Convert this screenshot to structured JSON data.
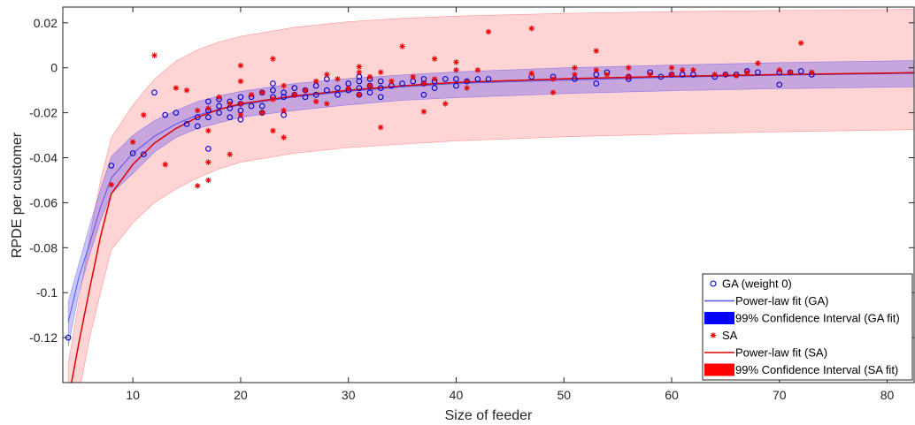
{
  "chart_data": {
    "type": "scatter",
    "title": "",
    "xlabel": "Size of feeder",
    "ylabel": "RPDE per customer",
    "xlim": [
      3.5,
      82.5
    ],
    "ylim": [
      -0.14,
      0.027
    ],
    "xticks": [
      10,
      20,
      30,
      40,
      50,
      60,
      70,
      80
    ],
    "xtick_labels": [
      "10",
      "20",
      "30",
      "40",
      "50",
      "60",
      "70",
      "80"
    ],
    "yticks": [
      0.02,
      0,
      -0.02,
      -0.04,
      -0.06,
      -0.08,
      -0.1,
      -0.12
    ],
    "ytick_labels": [
      "0.02",
      "0",
      "-0.02",
      "-0.04",
      "-0.06",
      "-0.08",
      "-0.1",
      "-0.12"
    ],
    "grid": false,
    "legend_position": "bottom-right",
    "legend": [
      {
        "label": "GA (weight 0)",
        "kind": "marker-circle",
        "color": "#0000cc"
      },
      {
        "label": "Power-law fit (GA)",
        "kind": "line",
        "color": "#5555ee"
      },
      {
        "label": "99% Confidence Interval (GA fit)",
        "kind": "patch",
        "color": "#0000ff"
      },
      {
        "label": "SA",
        "kind": "marker-star",
        "color": "#ee0000"
      },
      {
        "label": "Power-law fit (SA)",
        "kind": "line",
        "color": "#dd0000"
      },
      {
        "label": "99% Confidence Interval (SA fit)",
        "kind": "patch",
        "color": "#ff0000"
      }
    ],
    "series": [
      {
        "name": "GA (weight 0)",
        "kind": "scatter",
        "marker": "circle",
        "color": "#0000cc",
        "points": [
          [
            4,
            -0.12
          ],
          [
            8,
            -0.0435
          ],
          [
            10,
            -0.038
          ],
          [
            11,
            -0.0385
          ],
          [
            12,
            -0.011
          ],
          [
            13,
            -0.021
          ],
          [
            14,
            -0.02
          ],
          [
            15,
            -0.025
          ],
          [
            16,
            -0.026
          ],
          [
            16,
            -0.022
          ],
          [
            17,
            -0.036
          ],
          [
            17,
            -0.022
          ],
          [
            17,
            -0.019
          ],
          [
            17,
            -0.015
          ],
          [
            18,
            -0.02
          ],
          [
            18,
            -0.017
          ],
          [
            18,
            -0.014
          ],
          [
            19,
            -0.022
          ],
          [
            19,
            -0.018
          ],
          [
            19,
            -0.015
          ],
          [
            20,
            -0.023
          ],
          [
            20,
            -0.019
          ],
          [
            20,
            -0.016
          ],
          [
            20,
            -0.013
          ],
          [
            21,
            -0.017
          ],
          [
            21,
            -0.013
          ],
          [
            22,
            -0.02
          ],
          [
            22,
            -0.017
          ],
          [
            22,
            -0.011
          ],
          [
            23,
            -0.013
          ],
          [
            23,
            -0.01
          ],
          [
            23,
            -0.007
          ],
          [
            24,
            -0.021
          ],
          [
            24,
            -0.013
          ],
          [
            24,
            -0.011
          ],
          [
            25,
            -0.012
          ],
          [
            25,
            -0.009
          ],
          [
            26,
            -0.013
          ],
          [
            26,
            -0.01
          ],
          [
            27,
            -0.012
          ],
          [
            27,
            -0.008
          ],
          [
            28,
            -0.01
          ],
          [
            28,
            -0.005
          ],
          [
            29,
            -0.012
          ],
          [
            29,
            -0.009
          ],
          [
            30,
            -0.01
          ],
          [
            30,
            -0.007
          ],
          [
            31,
            -0.012
          ],
          [
            31,
            -0.009
          ],
          [
            31,
            -0.006
          ],
          [
            31,
            -0.004
          ],
          [
            32,
            -0.011
          ],
          [
            32,
            -0.008
          ],
          [
            32,
            -0.005
          ],
          [
            33,
            -0.013
          ],
          [
            33,
            -0.009
          ],
          [
            33,
            -0.006
          ],
          [
            34,
            -0.008
          ],
          [
            35,
            -0.007
          ],
          [
            36,
            -0.006
          ],
          [
            37,
            -0.012
          ],
          [
            37,
            -0.007
          ],
          [
            37,
            -0.005
          ],
          [
            38,
            -0.009
          ],
          [
            38,
            -0.006
          ],
          [
            39,
            -0.005
          ],
          [
            40,
            -0.008
          ],
          [
            40,
            -0.005
          ],
          [
            41,
            -0.006
          ],
          [
            42,
            -0.005
          ],
          [
            43,
            -0.005
          ],
          [
            47,
            -0.004
          ],
          [
            49,
            -0.004
          ],
          [
            51,
            -0.005
          ],
          [
            53,
            -0.007
          ],
          [
            53,
            -0.003
          ],
          [
            54,
            -0.002
          ],
          [
            56,
            -0.005
          ],
          [
            56,
            -0.004
          ],
          [
            58,
            -0.002
          ],
          [
            59,
            -0.004
          ],
          [
            60,
            -0.003
          ],
          [
            61,
            -0.003
          ],
          [
            62,
            -0.003
          ],
          [
            64,
            -0.004
          ],
          [
            65,
            -0.003
          ],
          [
            66,
            -0.003
          ],
          [
            67,
            -0.0015
          ],
          [
            68,
            -0.002
          ],
          [
            70,
            -0.0075
          ],
          [
            70,
            -0.002
          ],
          [
            71,
            -0.002
          ],
          [
            72,
            -0.0015
          ],
          [
            73,
            -0.003
          ]
        ]
      },
      {
        "name": "SA",
        "kind": "scatter",
        "marker": "star",
        "color": "#ee0000",
        "points": [
          [
            8,
            -0.052
          ],
          [
            10,
            -0.033
          ],
          [
            11,
            -0.021
          ],
          [
            12,
            0.0055
          ],
          [
            13,
            -0.043
          ],
          [
            14,
            -0.009
          ],
          [
            15,
            -0.01
          ],
          [
            16,
            -0.0525
          ],
          [
            16,
            -0.019
          ],
          [
            17,
            -0.05
          ],
          [
            17,
            -0.042
          ],
          [
            17,
            -0.028
          ],
          [
            17,
            -0.018
          ],
          [
            18,
            -0.013
          ],
          [
            19,
            -0.0385
          ],
          [
            19,
            -0.016
          ],
          [
            20,
            0.001
          ],
          [
            20,
            -0.006
          ],
          [
            20,
            -0.016
          ],
          [
            20,
            -0.021
          ],
          [
            21,
            -0.012
          ],
          [
            22,
            -0.02
          ],
          [
            22,
            -0.011
          ],
          [
            23,
            0.004
          ],
          [
            23,
            -0.028
          ],
          [
            23,
            -0.014
          ],
          [
            24,
            -0.031
          ],
          [
            24,
            -0.019
          ],
          [
            24,
            -0.008
          ],
          [
            25,
            -0.012
          ],
          [
            26,
            -0.01
          ],
          [
            27,
            -0.015
          ],
          [
            27,
            -0.006
          ],
          [
            28,
            -0.016
          ],
          [
            28,
            -0.003
          ],
          [
            29,
            -0.005
          ],
          [
            30,
            -0.009
          ],
          [
            31,
            0.0005
          ],
          [
            31,
            -0.002
          ],
          [
            31,
            -0.012
          ],
          [
            32,
            -0.008
          ],
          [
            32,
            -0.004
          ],
          [
            33,
            -0.0265
          ],
          [
            33,
            -0.002
          ],
          [
            34,
            -0.006
          ],
          [
            35,
            0.0095
          ],
          [
            36,
            -0.004
          ],
          [
            37,
            -0.0195
          ],
          [
            37,
            -0.007
          ],
          [
            38,
            0.004
          ],
          [
            38,
            -0.005
          ],
          [
            39,
            -0.016
          ],
          [
            40,
            0.0025
          ],
          [
            40,
            -0.001
          ],
          [
            41,
            -0.009
          ],
          [
            41,
            -0.006
          ],
          [
            42,
            -0.001
          ],
          [
            43,
            0.016
          ],
          [
            47,
            0.0175
          ],
          [
            47,
            -0.0025
          ],
          [
            49,
            -0.011
          ],
          [
            49,
            -0.005
          ],
          [
            51,
            0.0
          ],
          [
            51,
            -0.003
          ],
          [
            53,
            0.0075
          ],
          [
            53,
            -0.001
          ],
          [
            54,
            -0.003
          ],
          [
            56,
            0.0
          ],
          [
            56,
            -0.004
          ],
          [
            58,
            -0.003
          ],
          [
            60,
            0.0
          ],
          [
            60,
            -0.003
          ],
          [
            61,
            -0.001
          ],
          [
            62,
            -0.001
          ],
          [
            64,
            -0.003
          ],
          [
            65,
            -0.003
          ],
          [
            66,
            -0.0035
          ],
          [
            67,
            -0.002
          ],
          [
            68,
            0.002
          ],
          [
            70,
            -0.001
          ],
          [
            71,
            -0.002
          ],
          [
            72,
            0.011
          ],
          [
            73,
            -0.002
          ]
        ]
      },
      {
        "name": "Power-law fit (GA)",
        "kind": "line",
        "color": "#5555ee",
        "points": [
          [
            4,
            -0.113
          ],
          [
            5,
            -0.093
          ],
          [
            6,
            -0.078
          ],
          [
            7,
            -0.062
          ],
          [
            8,
            -0.049
          ],
          [
            10,
            -0.038
          ],
          [
            12,
            -0.0305
          ],
          [
            14,
            -0.025
          ],
          [
            16,
            -0.021
          ],
          [
            18,
            -0.0185
          ],
          [
            20,
            -0.0165
          ],
          [
            25,
            -0.013
          ],
          [
            30,
            -0.0105
          ],
          [
            35,
            -0.0085
          ],
          [
            40,
            -0.007
          ],
          [
            50,
            -0.0055
          ],
          [
            60,
            -0.0042
          ],
          [
            70,
            -0.0033
          ],
          [
            82.5,
            -0.0025
          ]
        ]
      },
      {
        "name": "Power-law fit (SA)",
        "kind": "line",
        "color": "#dd0000",
        "points": [
          [
            4,
            -0.148
          ],
          [
            5,
            -0.122
          ],
          [
            6,
            -0.098
          ],
          [
            7,
            -0.075
          ],
          [
            8,
            -0.056
          ],
          [
            10,
            -0.043
          ],
          [
            12,
            -0.0335
          ],
          [
            14,
            -0.027
          ],
          [
            16,
            -0.022
          ],
          [
            18,
            -0.0185
          ],
          [
            20,
            -0.016
          ],
          [
            25,
            -0.0125
          ],
          [
            30,
            -0.01
          ],
          [
            35,
            -0.008
          ],
          [
            40,
            -0.0065
          ],
          [
            50,
            -0.0049
          ],
          [
            60,
            -0.0038
          ],
          [
            70,
            -0.003
          ],
          [
            82.5,
            -0.0022
          ]
        ]
      },
      {
        "name": "99% Confidence Interval (GA fit)",
        "kind": "band",
        "color": "#0000ff",
        "upper": [
          [
            4,
            -0.104
          ],
          [
            5,
            -0.087
          ],
          [
            6,
            -0.07
          ],
          [
            7,
            -0.054
          ],
          [
            8,
            -0.0395
          ],
          [
            10,
            -0.03
          ],
          [
            12,
            -0.0235
          ],
          [
            14,
            -0.019
          ],
          [
            16,
            -0.015
          ],
          [
            18,
            -0.0125
          ],
          [
            20,
            -0.0105
          ],
          [
            25,
            -0.007
          ],
          [
            30,
            -0.0048
          ],
          [
            35,
            -0.0032
          ],
          [
            40,
            -0.0018
          ],
          [
            50,
            0.0
          ],
          [
            60,
            0.0012
          ],
          [
            70,
            0.0023
          ],
          [
            82.5,
            0.0032
          ]
        ],
        "lower": [
          [
            4,
            -0.124
          ],
          [
            5,
            -0.1
          ],
          [
            6,
            -0.083
          ],
          [
            7,
            -0.068
          ],
          [
            8,
            -0.056
          ],
          [
            10,
            -0.047
          ],
          [
            12,
            -0.0375
          ],
          [
            14,
            -0.031
          ],
          [
            16,
            -0.027
          ],
          [
            18,
            -0.0245
          ],
          [
            20,
            -0.022
          ],
          [
            25,
            -0.019
          ],
          [
            30,
            -0.0165
          ],
          [
            35,
            -0.0145
          ],
          [
            40,
            -0.0133
          ],
          [
            50,
            -0.0115
          ],
          [
            60,
            -0.0102
          ],
          [
            70,
            -0.0093
          ],
          [
            82.5,
            -0.0085
          ]
        ]
      },
      {
        "name": "99% Confidence Interval (SA fit)",
        "kind": "band",
        "color": "#ff0000",
        "upper": [
          [
            4,
            -0.132
          ],
          [
            5,
            -0.103
          ],
          [
            6,
            -0.075
          ],
          [
            7,
            -0.05
          ],
          [
            8,
            -0.031
          ],
          [
            10,
            -0.0165
          ],
          [
            12,
            -0.005
          ],
          [
            14,
            0.003
          ],
          [
            16,
            0.008
          ],
          [
            18,
            0.0115
          ],
          [
            20,
            0.014
          ],
          [
            25,
            0.018
          ],
          [
            30,
            0.0205
          ],
          [
            35,
            0.022
          ],
          [
            40,
            0.023
          ],
          [
            50,
            0.0242
          ],
          [
            60,
            0.025
          ],
          [
            70,
            0.0255
          ],
          [
            82.5,
            0.026
          ]
        ],
        "lower": [
          [
            4,
            -0.165
          ],
          [
            5,
            -0.145
          ],
          [
            6,
            -0.12
          ],
          [
            7,
            -0.1
          ],
          [
            8,
            -0.081
          ],
          [
            10,
            -0.069
          ],
          [
            12,
            -0.06
          ],
          [
            14,
            -0.054
          ],
          [
            16,
            -0.049
          ],
          [
            18,
            -0.045
          ],
          [
            20,
            -0.042
          ],
          [
            25,
            -0.038
          ],
          [
            30,
            -0.0355
          ],
          [
            35,
            -0.034
          ],
          [
            40,
            -0.0325
          ],
          [
            50,
            -0.0307
          ],
          [
            60,
            -0.0295
          ],
          [
            70,
            -0.0285
          ],
          [
            82.5,
            -0.0275
          ]
        ]
      }
    ]
  }
}
